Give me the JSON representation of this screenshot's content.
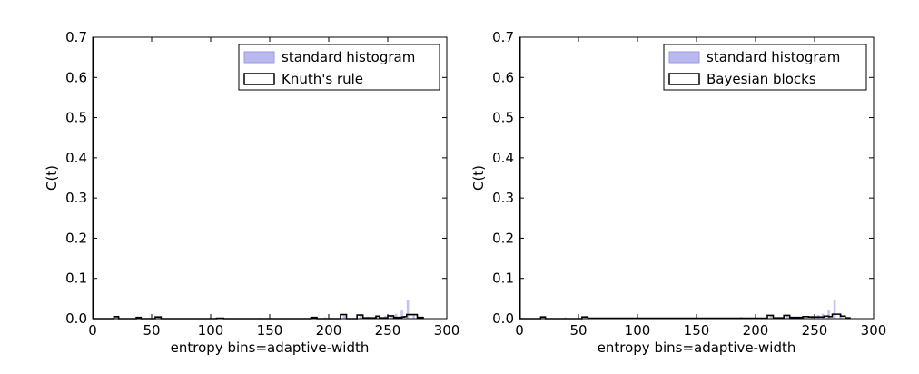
{
  "chart_data": [
    {
      "type": "histogram",
      "xlabel": "entropy bins=adaptive-width",
      "ylabel": "C(t)",
      "xlim": [
        0,
        300
      ],
      "ylim": [
        0,
        0.7
      ],
      "xticks": [
        "0",
        "50",
        "100",
        "150",
        "200",
        "250",
        "300"
      ],
      "yticks": [
        "0.0",
        "0.1",
        "0.2",
        "0.3",
        "0.4",
        "0.5",
        "0.6",
        "0.7"
      ],
      "legend_position": "top-right",
      "series": [
        {
          "name": "standard histogram",
          "style": "filled",
          "color": "#b9b9f0",
          "bins": [
            {
              "x0": 18,
              "x1": 21,
              "y": 0.004
            },
            {
              "x0": 38,
              "x1": 40,
              "y": 0.003
            },
            {
              "x0": 55,
              "x1": 57,
              "y": 0.003
            },
            {
              "x0": 108,
              "x1": 110,
              "y": 0.002
            },
            {
              "x0": 140,
              "x1": 142,
              "y": 0.002
            },
            {
              "x0": 187,
              "x1": 189,
              "y": 0.004
            },
            {
              "x0": 196,
              "x1": 198,
              "y": 0.003
            },
            {
              "x0": 212,
              "x1": 214,
              "y": 0.007
            },
            {
              "x0": 226,
              "x1": 228,
              "y": 0.009
            },
            {
              "x0": 232,
              "x1": 234,
              "y": 0.005
            },
            {
              "x0": 240,
              "x1": 242,
              "y": 0.005
            },
            {
              "x0": 247,
              "x1": 249,
              "y": 0.007
            },
            {
              "x0": 252,
              "x1": 254,
              "y": 0.009
            },
            {
              "x0": 256,
              "x1": 258,
              "y": 0.012
            },
            {
              "x0": 261,
              "x1": 263,
              "y": 0.02
            },
            {
              "x0": 266,
              "x1": 268,
              "y": 0.045
            },
            {
              "x0": 271,
              "x1": 273,
              "y": 0.01
            }
          ]
        },
        {
          "name": "Knuth's rule",
          "style": "step",
          "color": "#000000",
          "edges": [
            0,
            18,
            22,
            37,
            41,
            53,
            58,
            105,
            111,
            185,
            190,
            210,
            215,
            224,
            229,
            240,
            243,
            250,
            255,
            262,
            264,
            266,
            275,
            280
          ],
          "heights": [
            0.0,
            0.005,
            0.0,
            0.003,
            0.0,
            0.004,
            0.0,
            0.001,
            0.0,
            0.003,
            0.0,
            0.01,
            0.0,
            0.009,
            0.002,
            0.006,
            0.002,
            0.007,
            0.003,
            0.004,
            0.005,
            0.01,
            0.003
          ]
        }
      ]
    },
    {
      "type": "histogram",
      "xlabel": "entropy bins=adaptive-width",
      "ylabel": "C(t)",
      "xlim": [
        0,
        300
      ],
      "ylim": [
        0,
        0.7
      ],
      "xticks": [
        "0",
        "50",
        "100",
        "150",
        "200",
        "250",
        "300"
      ],
      "yticks": [
        "0.0",
        "0.1",
        "0.2",
        "0.3",
        "0.4",
        "0.5",
        "0.6",
        "0.7"
      ],
      "legend_position": "top-right",
      "series": [
        {
          "name": "standard histogram",
          "style": "filled",
          "color": "#b9b9f0",
          "bins": [
            {
              "x0": 18,
              "x1": 21,
              "y": 0.004
            },
            {
              "x0": 38,
              "x1": 40,
              "y": 0.003
            },
            {
              "x0": 55,
              "x1": 57,
              "y": 0.003
            },
            {
              "x0": 108,
              "x1": 110,
              "y": 0.002
            },
            {
              "x0": 140,
              "x1": 142,
              "y": 0.002
            },
            {
              "x0": 187,
              "x1": 189,
              "y": 0.004
            },
            {
              "x0": 196,
              "x1": 198,
              "y": 0.003
            },
            {
              "x0": 212,
              "x1": 214,
              "y": 0.007
            },
            {
              "x0": 226,
              "x1": 228,
              "y": 0.009
            },
            {
              "x0": 232,
              "x1": 234,
              "y": 0.005
            },
            {
              "x0": 240,
              "x1": 242,
              "y": 0.005
            },
            {
              "x0": 247,
              "x1": 249,
              "y": 0.007
            },
            {
              "x0": 252,
              "x1": 254,
              "y": 0.009
            },
            {
              "x0": 256,
              "x1": 258,
              "y": 0.012
            },
            {
              "x0": 261,
              "x1": 263,
              "y": 0.02
            },
            {
              "x0": 266,
              "x1": 268,
              "y": 0.045
            },
            {
              "x0": 271,
              "x1": 273,
              "y": 0.01
            }
          ]
        },
        {
          "name": "Bayesian blocks",
          "style": "step",
          "color": "#000000",
          "edges": [
            0,
            18,
            22,
            53,
            58,
            210,
            215,
            224,
            229,
            240,
            245,
            258,
            262,
            265,
            272,
            276,
            280
          ],
          "heights": [
            0.0,
            0.004,
            0.0,
            0.004,
            0.001,
            0.008,
            0.002,
            0.008,
            0.003,
            0.005,
            0.004,
            0.006,
            0.005,
            0.011,
            0.006,
            0.002
          ]
        }
      ]
    }
  ]
}
